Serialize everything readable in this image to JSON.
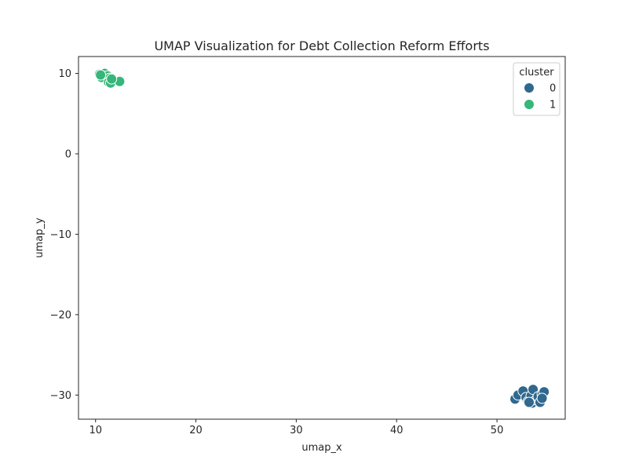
{
  "chart_data": {
    "type": "scatter",
    "title": "UMAP Visualization for Debt Collection Reform Efforts",
    "xlabel": "umap_x",
    "ylabel": "umap_y",
    "xlim": [
      8.3,
      56.8
    ],
    "ylim": [
      -33.0,
      12.1
    ],
    "x_ticks": [
      10,
      20,
      30,
      40,
      50
    ],
    "y_ticks": [
      10,
      0,
      -10,
      -20,
      -30
    ],
    "x_tick_labels": [
      "10",
      "20",
      "30",
      "40",
      "50"
    ],
    "y_tick_labels": [
      "10",
      "0",
      "−10",
      "−20",
      "−30"
    ],
    "grid": false,
    "legend": {
      "title": "cluster",
      "placement": "top-right",
      "entries": [
        {
          "label": "0",
          "color": "#30688e"
        },
        {
          "label": "1",
          "color": "#35b779"
        }
      ]
    },
    "series": [
      {
        "name": "0",
        "color": "#30688e",
        "points": [
          [
            51.8,
            -30.5
          ],
          [
            52.1,
            -30.0
          ],
          [
            52.6,
            -29.5
          ],
          [
            52.9,
            -30.3
          ],
          [
            53.1,
            -30.8
          ],
          [
            53.4,
            -30.1
          ],
          [
            53.6,
            -29.3
          ],
          [
            53.5,
            -31.0
          ],
          [
            53.9,
            -30.6
          ],
          [
            54.1,
            -30.2
          ],
          [
            54.3,
            -30.9
          ],
          [
            54.5,
            -29.9
          ],
          [
            54.7,
            -29.6
          ],
          [
            54.5,
            -30.4
          ],
          [
            53.2,
            -30.9
          ]
        ]
      },
      {
        "name": "1",
        "color": "#35b779",
        "points": [
          [
            10.4,
            9.9
          ],
          [
            10.6,
            9.5
          ],
          [
            10.9,
            10.0
          ],
          [
            11.2,
            9.7
          ],
          [
            11.4,
            9.4
          ],
          [
            11.3,
            8.9
          ],
          [
            11.5,
            8.8
          ],
          [
            12.4,
            9.0
          ],
          [
            10.5,
            9.8
          ],
          [
            11.6,
            9.3
          ]
        ]
      }
    ]
  }
}
